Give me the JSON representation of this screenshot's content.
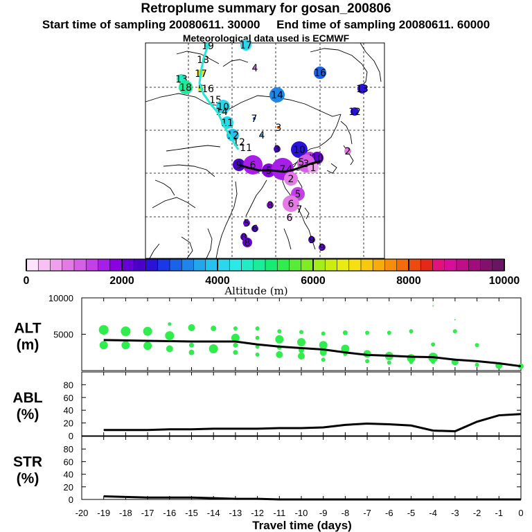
{
  "header": {
    "title": "Retroplume summary for gosan_200806",
    "start_label": "Start time of sampling 20080611. 30000",
    "end_label": "End time of sampling 20080611. 60000",
    "met_label": "Meteorological data used is ECMWF"
  },
  "colorbar": {
    "label": "Altitude (m)",
    "min": 0,
    "max": 10000,
    "ticks": [
      "0",
      "2000",
      "4000",
      "6000",
      "8000",
      "10000"
    ],
    "colors": [
      "#fde4fb",
      "#f7c2f3",
      "#efa0ec",
      "#e37ae6",
      "#d75ee6",
      "#c63ee8",
      "#a71ee8",
      "#8a00e0",
      "#6600d6",
      "#4a00c8",
      "#2a12d8",
      "#1a38e8",
      "#1a62e8",
      "#1e86ea",
      "#22a6ec",
      "#26c2ee",
      "#2ad8ee",
      "#2ce8e6",
      "#22ecc4",
      "#1aec9c",
      "#16ec74",
      "#30ec4c",
      "#58ec36",
      "#82ec22",
      "#a6ec18",
      "#caec10",
      "#e8ec10",
      "#f6e010",
      "#f8c80e",
      "#f8ac0c",
      "#f68e0c",
      "#f26c0c",
      "#ee4a10",
      "#e6281a",
      "#e0127e",
      "#d80e9a",
      "#c00e8a",
      "#a00c7c",
      "#84106e",
      "#6a1462"
    ]
  },
  "map": {
    "plume_color": "#22e8d8",
    "clusters": [
      {
        "label": "19",
        "color": "#2ce8e6"
      },
      {
        "label": "17",
        "color": "#2ad8ee"
      },
      {
        "label": "18",
        "color": "#2ce8e6"
      },
      {
        "label": "4",
        "color": "#d75ee6"
      },
      {
        "label": "16",
        "color": "#1a62e8"
      },
      {
        "label": "17",
        "color": "#f6e010"
      },
      {
        "label": "13",
        "color": "#22ecc4"
      },
      {
        "label": "18",
        "color": "#1aec9c"
      },
      {
        "label": "5",
        "color": "#caec10"
      },
      {
        "label": "16",
        "color": "#e8ec10"
      },
      {
        "label": "14",
        "color": "#1e86ea"
      },
      {
        "label": "13",
        "color": "#2a12d8"
      },
      {
        "label": "15",
        "color": "#2ce8e6"
      },
      {
        "label": "10",
        "color": "#2ad8ee"
      },
      {
        "label": "14",
        "color": "#2ce8e6"
      },
      {
        "label": "7",
        "color": "#1a62e8"
      },
      {
        "label": "12",
        "color": "#2a12d8"
      },
      {
        "label": "11",
        "color": "#2ad8ee"
      },
      {
        "label": "3",
        "color": "#f26c0c"
      },
      {
        "label": "12",
        "color": "#26c2ee"
      },
      {
        "label": "4",
        "color": "#22a6ec"
      },
      {
        "label": "12",
        "color": "#26c2ee"
      },
      {
        "label": "11",
        "color": "#2ad8ee"
      },
      {
        "label": "3",
        "color": "#4a00c8"
      },
      {
        "label": "10",
        "color": "#2a12d8"
      },
      {
        "label": "2",
        "color": "#e37ae6"
      },
      {
        "label": "4",
        "color": "#c63ee8"
      },
      {
        "label": "10",
        "color": "#6600d6"
      },
      {
        "label": "9",
        "color": "#4a00c8"
      },
      {
        "label": "8",
        "color": "#6600d6"
      },
      {
        "label": "6",
        "color": "#a71ee8"
      },
      {
        "label": "5",
        "color": "#8a00e0"
      },
      {
        "label": "7",
        "color": "#a71ee8"
      },
      {
        "label": "4",
        "color": "#8a00e0"
      },
      {
        "label": "3",
        "color": "#d75ee6"
      },
      {
        "label": "5",
        "color": "#efa0ec"
      },
      {
        "label": "2",
        "color": "#e37ae6"
      },
      {
        "label": "1",
        "color": "#efa0ec"
      },
      {
        "label": "5",
        "color": "#c63ee8"
      },
      {
        "label": "6",
        "color": "#e37ae6"
      },
      {
        "label": "7",
        "color": "#d75ee6"
      },
      {
        "label": "8",
        "color": "#8a00e0"
      },
      {
        "label": "6",
        "color": "#f7c2f3"
      },
      {
        "label": "5",
        "color": "#6600d6"
      },
      {
        "label": "6",
        "color": "#4a00c8"
      },
      {
        "label": "8",
        "color": "#6600d6"
      },
      {
        "label": "8",
        "color": "#6600d6"
      },
      {
        "label": "9",
        "color": "#4a00c8"
      },
      {
        "label": "9",
        "color": "#6600d6"
      }
    ]
  },
  "chart_data": [
    {
      "type": "scatter",
      "name": "ALT",
      "ylabel": "ALT\n(m)",
      "xlabel": "Travel time (days)",
      "xlim": [
        -20,
        0
      ],
      "ylim": [
        0,
        10000
      ],
      "yticks": [
        5000,
        10000
      ],
      "points_color": "#30ec4c",
      "line_x": [
        -19,
        -18,
        -17,
        -16,
        -15,
        -14,
        -13,
        -12,
        -11,
        -10,
        -9,
        -8,
        -7,
        -6,
        -5,
        -4,
        -3,
        -2,
        -1,
        0
      ],
      "line_y": [
        4200,
        4150,
        4100,
        4050,
        4000,
        4000,
        4000,
        3600,
        3300,
        3100,
        2900,
        2500,
        2150,
        2050,
        1900,
        1850,
        1500,
        1300,
        1000,
        600
      ],
      "points": [
        {
          "x": -19,
          "y": 5600
        },
        {
          "x": -19,
          "y": 3500
        },
        {
          "x": -18,
          "y": 5400
        },
        {
          "x": -18,
          "y": 3500
        },
        {
          "x": -17,
          "y": 5400
        },
        {
          "x": -17,
          "y": 3400
        },
        {
          "x": -16,
          "y": 6400
        },
        {
          "x": -16,
          "y": 4800
        },
        {
          "x": -16,
          "y": 3000
        },
        {
          "x": -15,
          "y": 5900
        },
        {
          "x": -15,
          "y": 3500
        },
        {
          "x": -15,
          "y": 2500
        },
        {
          "x": -14,
          "y": 5800
        },
        {
          "x": -14,
          "y": 3000
        },
        {
          "x": -13,
          "y": 5800
        },
        {
          "x": -13,
          "y": 4500
        },
        {
          "x": -13,
          "y": 3500
        },
        {
          "x": -13,
          "y": 2500
        },
        {
          "x": -12,
          "y": 5800
        },
        {
          "x": -12,
          "y": 4500
        },
        {
          "x": -12,
          "y": 3300
        },
        {
          "x": -12,
          "y": 2200
        },
        {
          "x": -11,
          "y": 5400
        },
        {
          "x": -11,
          "y": 4300
        },
        {
          "x": -11,
          "y": 3200
        },
        {
          "x": -11,
          "y": 2200
        },
        {
          "x": -10,
          "y": 5300
        },
        {
          "x": -10,
          "y": 3900
        },
        {
          "x": -10,
          "y": 2800
        },
        {
          "x": -10,
          "y": 2000
        },
        {
          "x": -9,
          "y": 5100
        },
        {
          "x": -9,
          "y": 3500
        },
        {
          "x": -9,
          "y": 2500
        },
        {
          "x": -9,
          "y": 1500
        },
        {
          "x": -8,
          "y": 5200
        },
        {
          "x": -8,
          "y": 3000
        },
        {
          "x": -8,
          "y": 2300
        },
        {
          "x": -7,
          "y": 5200
        },
        {
          "x": -7,
          "y": 2300
        },
        {
          "x": -7,
          "y": 1300
        },
        {
          "x": -6,
          "y": 5200
        },
        {
          "x": -6,
          "y": 2000
        },
        {
          "x": -6,
          "y": 1100
        },
        {
          "x": -5,
          "y": 5400
        },
        {
          "x": -5,
          "y": 1700
        },
        {
          "x": -5,
          "y": 1200
        },
        {
          "x": -4,
          "y": 8900
        },
        {
          "x": -4,
          "y": 3600
        },
        {
          "x": -4,
          "y": 1800
        },
        {
          "x": -4,
          "y": 1200
        },
        {
          "x": -3,
          "y": 7000
        },
        {
          "x": -3,
          "y": 5400
        },
        {
          "x": -3,
          "y": 1200
        },
        {
          "x": -2,
          "y": 3500
        },
        {
          "x": -2,
          "y": 800
        },
        {
          "x": -1,
          "y": 700
        },
        {
          "x": 0,
          "y": 600
        }
      ],
      "sizes": [
        14,
        12,
        14,
        12,
        13,
        12,
        5,
        13,
        10,
        10,
        7,
        8,
        8,
        13,
        6,
        12,
        7,
        7,
        6,
        6,
        6,
        6,
        6,
        12,
        7,
        10,
        6,
        12,
        8,
        10,
        6,
        12,
        10,
        6,
        7,
        12,
        6,
        6,
        11,
        6,
        6,
        12,
        6,
        6,
        12,
        6,
        2,
        6,
        14,
        6,
        2,
        6,
        10,
        6,
        6,
        10,
        8
      ]
    },
    {
      "type": "line",
      "name": "ABL",
      "ylabel": "ABL\n(%)",
      "xlim": [
        -20,
        0
      ],
      "ylim": [
        0,
        100
      ],
      "yticks": [
        0,
        20,
        40,
        60,
        80
      ],
      "x": [
        -19,
        -18,
        -17,
        -16,
        -15,
        -14,
        -13,
        -12,
        -11,
        -10,
        -9,
        -8,
        -7,
        -6,
        -5,
        -4,
        -3,
        -2,
        -1,
        0
      ],
      "y": [
        9,
        9,
        9,
        10,
        10,
        11,
        11,
        11,
        12,
        12,
        13,
        17,
        19,
        18,
        16,
        8,
        7,
        22,
        32,
        34
      ]
    },
    {
      "type": "line",
      "name": "STR",
      "ylabel": "STR\n(%)",
      "xlabel": "Travel time (days)",
      "xlim": [
        -20,
        0
      ],
      "ylim": [
        0,
        100
      ],
      "yticks": [
        0,
        20,
        40,
        60,
        80
      ],
      "xticks": [
        "-20",
        "-19",
        "-18",
        "-17",
        "-16",
        "-15",
        "-14",
        "-13",
        "-12",
        "-11",
        "-10",
        "-9",
        "-8",
        "-7",
        "-6",
        "-5",
        "-4",
        "-3",
        "-2",
        "-1",
        "0"
      ],
      "x": [
        -19,
        -18,
        -17,
        -16,
        -15,
        -14,
        -13,
        -12,
        -11,
        -10,
        -9,
        -8,
        -7,
        -6,
        -5,
        -4,
        -3,
        -2,
        -1,
        0
      ],
      "y": [
        5,
        4,
        3,
        3,
        3,
        2,
        1,
        1,
        0,
        0,
        0,
        0,
        0,
        0,
        0,
        0,
        0,
        0,
        0,
        0
      ]
    }
  ]
}
